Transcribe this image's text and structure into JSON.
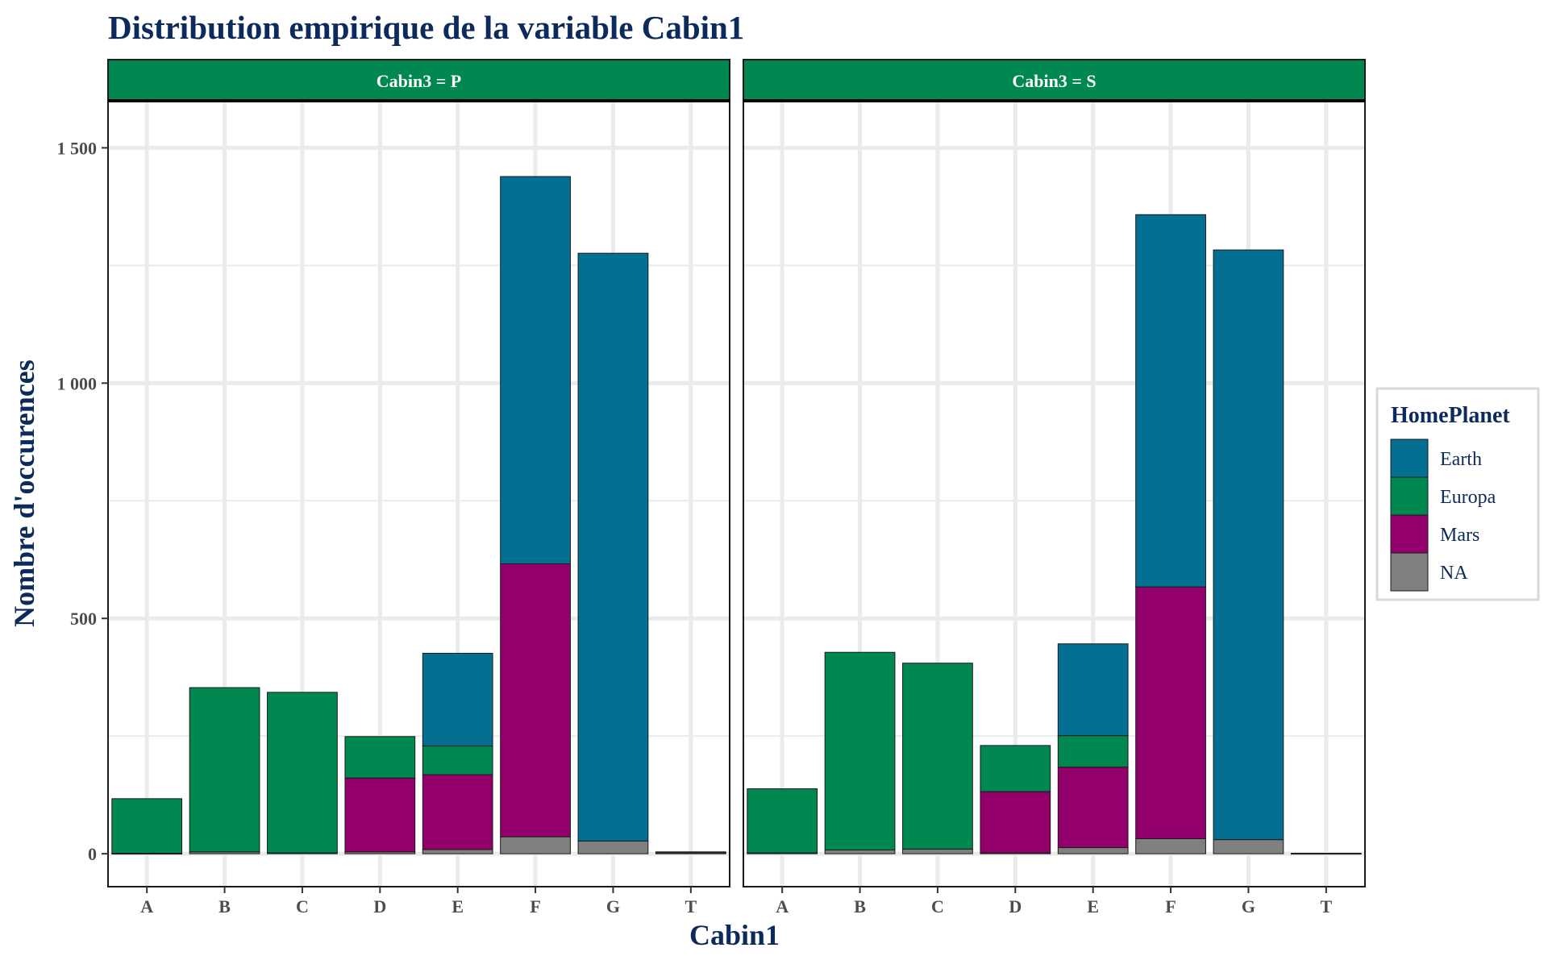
{
  "chart_data": {
    "type": "bar",
    "stacked": true,
    "title": "Distribution empirique de la variable Cabin1",
    "xlabel": "Cabin1",
    "ylabel": "Nombre d'occurences",
    "ylim": [
      -70,
      1600
    ],
    "yticks": [
      0,
      500,
      1000,
      1500
    ],
    "ytick_labels": [
      "0",
      "500",
      "1 000",
      "1 500"
    ],
    "grid": true,
    "legend": {
      "title": "HomePlanet",
      "placement": "right",
      "entries": [
        "Earth",
        "Europa",
        "Mars",
        "NA"
      ]
    },
    "colors": {
      "Earth": "#026f93",
      "Europa": "#008850",
      "Mars": "#93006c",
      "NA": "#808080",
      "strip": "#008850"
    },
    "categories": [
      "A",
      "B",
      "C",
      "D",
      "E",
      "F",
      "G",
      "T"
    ],
    "facets": [
      {
        "label": "Cabin3 = P",
        "series": [
          {
            "name": "NA",
            "values": [
              1,
              4,
              2,
              4,
              9,
              36,
              27,
              2
            ]
          },
          {
            "name": "Mars",
            "values": [
              0,
              0,
              0,
              157,
              159,
              580,
              0,
              0
            ]
          },
          {
            "name": "Europa",
            "values": [
              116,
              349,
              341,
              88,
              61,
              0,
              0,
              2
            ]
          },
          {
            "name": "Earth",
            "values": [
              0,
              0,
              0,
              0,
              197,
              823,
              1249,
              0
            ]
          }
        ]
      },
      {
        "label": "Cabin3 = S",
        "series": [
          {
            "name": "NA",
            "values": [
              2,
              8,
              10,
              2,
              13,
              32,
              30,
              1
            ]
          },
          {
            "name": "Mars",
            "values": [
              0,
              0,
              0,
              130,
              171,
              535,
              0,
              0
            ]
          },
          {
            "name": "Europa",
            "values": [
              136,
              420,
              395,
              98,
              67,
              0,
              0,
              0
            ]
          },
          {
            "name": "Earth",
            "values": [
              0,
              0,
              0,
              0,
              195,
              791,
              1253,
              0
            ]
          }
        ]
      }
    ]
  }
}
